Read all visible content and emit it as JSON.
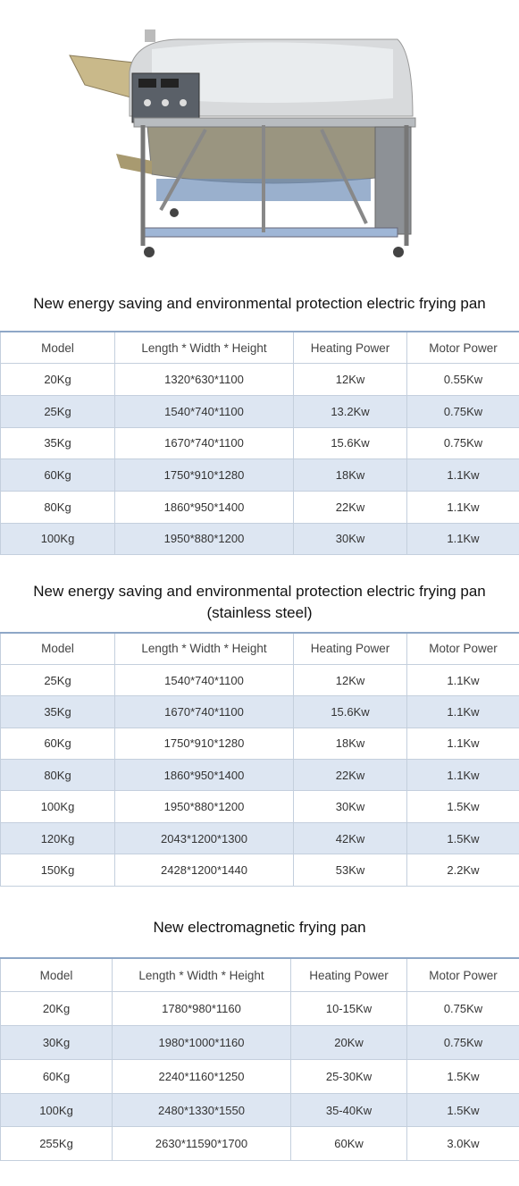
{
  "sections": [
    {
      "title_lines": [
        "New energy saving and environmental protection electric frying pan"
      ],
      "table": {
        "header": [
          "Model",
          "Length * Width * Height",
          "Heating Power",
          "Motor Power"
        ],
        "rows": [
          [
            "20Kg",
            "1320*630*1100",
            "12Kw",
            "0.55Kw"
          ],
          [
            "25Kg",
            "1540*740*1100",
            "13.2Kw",
            "0.75Kw"
          ],
          [
            "35Kg",
            "1670*740*1100",
            "15.6Kw",
            "0.75Kw"
          ],
          [
            "60Kg",
            "1750*910*1280",
            "18Kw",
            "1.1Kw"
          ],
          [
            "80Kg",
            "1860*950*1400",
            "22Kw",
            "1.1Kw"
          ],
          [
            "100Kg",
            "1950*880*1200",
            "30Kw",
            "1.1Kw"
          ]
        ]
      }
    },
    {
      "title_lines": [
        "New energy saving and environmental protection electric frying pan",
        "(stainless steel)"
      ],
      "table": {
        "header": [
          "Model",
          "Length * Width * Height",
          "Heating Power",
          "Motor Power"
        ],
        "rows": [
          [
            "25Kg",
            "1540*740*1100",
            "12Kw",
            "1.1Kw"
          ],
          [
            "35Kg",
            "1670*740*1100",
            "15.6Kw",
            "1.1Kw"
          ],
          [
            "60Kg",
            "1750*910*1280",
            "18Kw",
            "1.1Kw"
          ],
          [
            "80Kg",
            "1860*950*1400",
            "22Kw",
            "1.1Kw"
          ],
          [
            "100Kg",
            "1950*880*1200",
            "30Kw",
            "1.5Kw"
          ],
          [
            "120Kg",
            "2043*1200*1300",
            "42Kw",
            "1.5Kw"
          ],
          [
            "150Kg",
            "2428*1200*1440",
            "53Kw",
            "2.2Kw"
          ]
        ]
      }
    },
    {
      "title_lines": [
        "New electromagnetic frying pan"
      ],
      "table": {
        "header": [
          "Model",
          "Length * Width * Height",
          "Heating Power",
          "Motor Power"
        ],
        "rows": [
          [
            "20Kg",
            "1780*980*1160",
            "10-15Kw",
            "0.75Kw"
          ],
          [
            "30Kg",
            "1980*1000*1160",
            "20Kw",
            "0.75Kw"
          ],
          [
            "60Kg",
            "2240*1160*1250",
            "25-30Kw",
            "1.5Kw"
          ],
          [
            "100Kg",
            "2480*1330*1550",
            "35-40Kw",
            "1.5Kw"
          ],
          [
            "255Kg",
            "2630*11590*1700",
            "60Kw",
            "3.0Kw"
          ]
        ]
      }
    }
  ]
}
